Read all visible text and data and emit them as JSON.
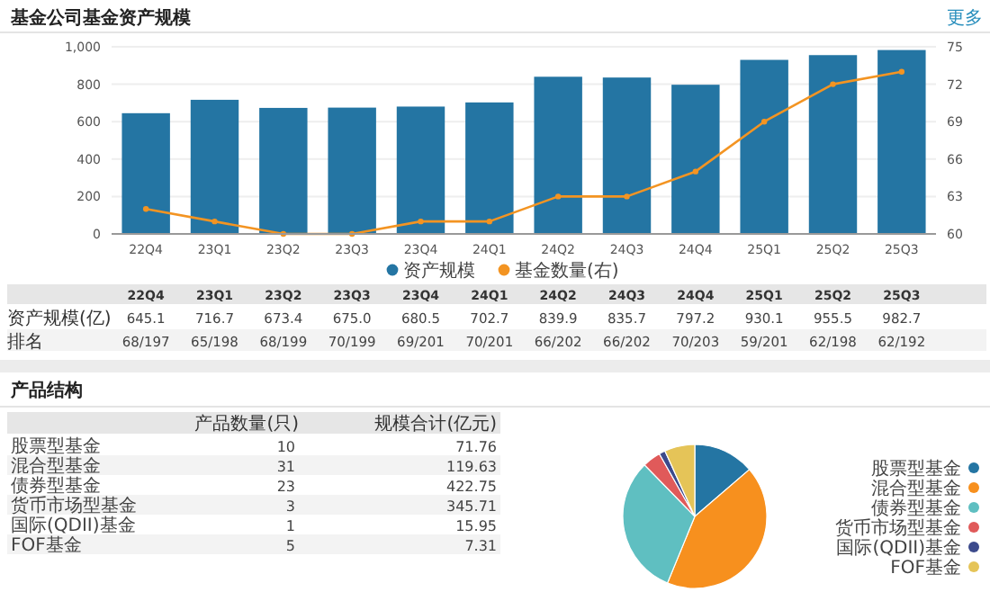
{
  "chart_data": [
    {
      "type": "bar",
      "title": "基金公司基金资产规模",
      "categories": [
        "22Q4",
        "23Q1",
        "23Q2",
        "23Q3",
        "23Q4",
        "24Q1",
        "24Q2",
        "24Q3",
        "24Q4",
        "25Q1",
        "25Q2",
        "25Q3"
      ],
      "series": [
        {
          "name": "资产规模",
          "color": "#2475a3",
          "values": [
            645.1,
            716.7,
            673.4,
            675.0,
            680.5,
            702.7,
            839.9,
            835.7,
            797.2,
            930.1,
            955.5,
            982.7
          ],
          "value_labels": [
            "645.1",
            "716.7",
            "673.4",
            "675.0",
            "680.5",
            "702.7",
            "839.9",
            "835.7",
            "797.2",
            "930.1",
            "955.5",
            "982.7"
          ]
        },
        {
          "name": "基金数量(右)",
          "type": "line",
          "axis": "y2",
          "color": "#f39422",
          "values": [
            62,
            61,
            60,
            60,
            61,
            61,
            63,
            63,
            65,
            69,
            72,
            73
          ]
        }
      ],
      "ylim": [
        0,
        1000
      ],
      "yticks": [
        0,
        200,
        400,
        600,
        800,
        {
          "value": 1000,
          "label": "1,000"
        }
      ],
      "y2lim": [
        60,
        75
      ],
      "y2ticks": [
        60,
        63,
        66,
        69,
        72,
        75
      ],
      "grid": "y",
      "legend": "bottom",
      "marker": "circle",
      "annotations": [
        "更多",
        "资产规模(亿)",
        "排名",
        "68/197",
        "65/198",
        "68/199",
        "70/199",
        "69/201",
        "70/201",
        "66/202",
        "66/202",
        "70/203",
        "59/201",
        "62/198",
        "62/192"
      ]
    },
    {
      "type": "other",
      "title": "产品结构",
      "annotations": [
        "产品数量(只)",
        "规模合计(亿元)",
        "股票型基金",
        "10",
        "71.76",
        "混合型基金",
        "31",
        "119.63",
        "债券型基金",
        "23",
        "422.75",
        "货币市场型基金",
        "3",
        "345.71",
        "国际(QDII)基金",
        "1",
        "15.95",
        "FOF基金",
        "5",
        "7.31"
      ]
    },
    {
      "type": "pie",
      "categories": [
        "股票型基金",
        "混合型基金",
        "债券型基金",
        "货币市场型基金",
        "国际(QDII)基金",
        "FOF基金"
      ],
      "values": [
        13.7,
        42.5,
        31.5,
        4.1,
        1.4,
        6.8
      ],
      "colors": [
        "#2475a3",
        "#f7901e",
        "#5fbfc1",
        "#e05a5a",
        "#3c4a8c",
        "#e5c458"
      ],
      "legend": "right"
    }
  ]
}
